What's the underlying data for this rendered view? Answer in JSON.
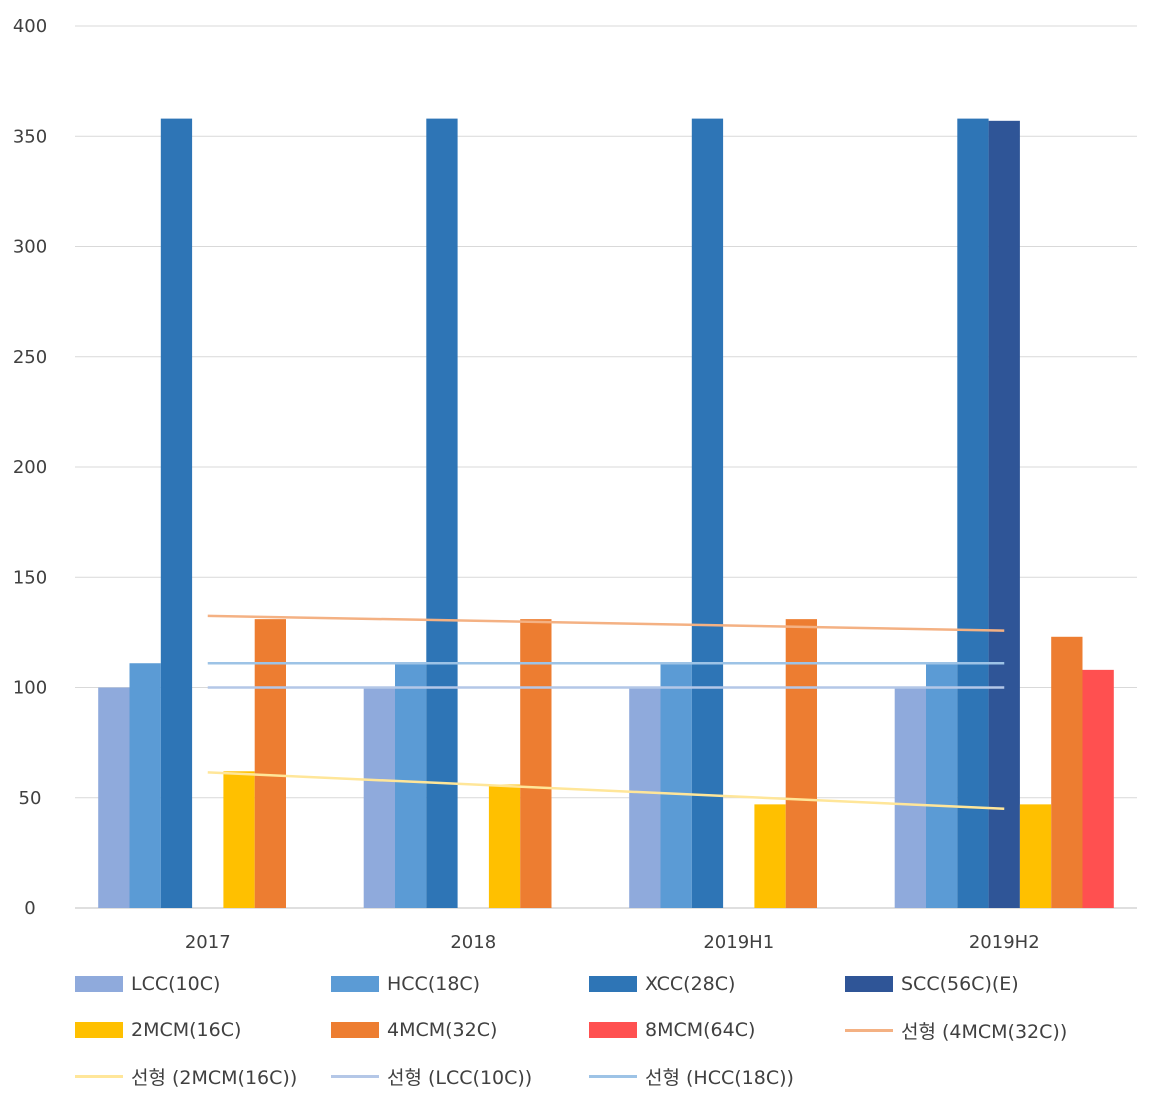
{
  "chart_data": {
    "type": "bar",
    "categories": [
      "2017",
      "2018",
      "2019H1",
      "2019H2"
    ],
    "ylim": [
      0,
      400
    ],
    "yticks": [
      0,
      50,
      100,
      150,
      200,
      250,
      300,
      350,
      400
    ],
    "series": [
      {
        "name": "LCC(10C)",
        "color": "#8FAADC",
        "values": [
          100,
          100,
          100,
          100
        ]
      },
      {
        "name": "HCC(18C)",
        "color": "#5B9BD5",
        "values": [
          111,
          111,
          111,
          111
        ]
      },
      {
        "name": "XCC(28C)",
        "color": "#2E75B6",
        "values": [
          358,
          358,
          358,
          358
        ]
      },
      {
        "name": "SCC(56C)(E)",
        "color": "#2F5597",
        "values": [
          null,
          null,
          null,
          357
        ]
      },
      {
        "name": "2MCM(16C)",
        "color": "#FFC000",
        "values": [
          62,
          56,
          47,
          47
        ]
      },
      {
        "name": "4MCM(32C)",
        "color": "#ED7D31",
        "values": [
          131,
          131,
          131,
          123
        ]
      },
      {
        "name": "8MCM(64C)",
        "color": "#FF5050",
        "values": [
          null,
          null,
          null,
          108
        ]
      }
    ],
    "trendlines": [
      {
        "name": "선형 (4MCM(32C))",
        "color": "#F4B183",
        "start": 132.5,
        "end": 125.8
      },
      {
        "name": "선형 (2MCM(16C))",
        "color": "#FFE699",
        "start": 61.5,
        "end": 45
      },
      {
        "name": "선형 (LCC(10C))",
        "color": "#B4C7E7",
        "start": 100,
        "end": 100
      },
      {
        "name": "선형 (HCC(18C))",
        "color": "#9DC3E6",
        "start": 111,
        "end": 111
      }
    ],
    "legend": {
      "position": "bottom",
      "rows": [
        [
          {
            "label": "LCC(10C)",
            "kind": "bar",
            "color": "#8FAADC"
          },
          {
            "label": "HCC(18C)",
            "kind": "bar",
            "color": "#5B9BD5"
          },
          {
            "label": "XCC(28C)",
            "kind": "bar",
            "color": "#2E75B6"
          },
          {
            "label": "SCC(56C)(E)",
            "kind": "bar",
            "color": "#2F5597"
          }
        ],
        [
          {
            "label": "2MCM(16C)",
            "kind": "bar",
            "color": "#FFC000"
          },
          {
            "label": "4MCM(32C)",
            "kind": "bar",
            "color": "#ED7D31"
          },
          {
            "label": "8MCM(64C)",
            "kind": "bar",
            "color": "#FF5050"
          },
          {
            "label": "선형 (4MCM(32C))",
            "kind": "line",
            "color": "#F4B183"
          }
        ],
        [
          {
            "label": "선형 (2MCM(16C))",
            "kind": "line",
            "color": "#FFE699"
          },
          {
            "label": "선형 (LCC(10C))",
            "kind": "line",
            "color": "#B4C7E7"
          },
          {
            "label": "선형 (HCC(18C))",
            "kind": "line",
            "color": "#9DC3E6"
          }
        ]
      ]
    },
    "grid": true
  }
}
